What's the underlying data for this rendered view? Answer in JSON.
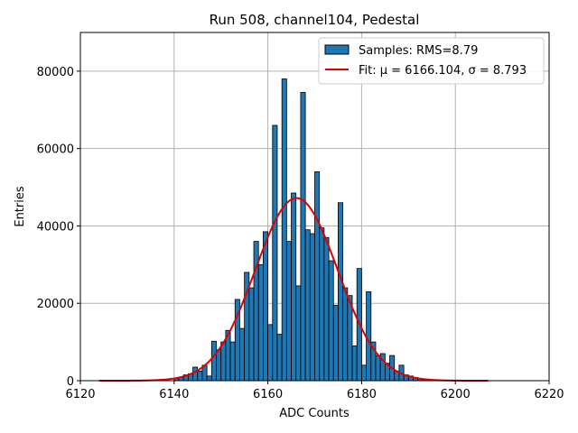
{
  "chart_data": {
    "type": "bar",
    "title": "Run 508, channel104, Pedestal",
    "xlabel": "ADC Counts",
    "ylabel": "Entries",
    "xlim": [
      6120,
      6220
    ],
    "ylim": [
      0,
      90000
    ],
    "xticks": [
      6120,
      6140,
      6160,
      6180,
      6200,
      6220
    ],
    "yticks": [
      0,
      20000,
      40000,
      60000,
      80000
    ],
    "grid": true,
    "legend_position": "top-right",
    "bin_width": 1,
    "histogram": {
      "name": "Samples: RMS=8.79",
      "color": "#1f77b4",
      "bins": [
        6140,
        6141,
        6142,
        6143,
        6144,
        6145,
        6146,
        6147,
        6148,
        6149,
        6150,
        6151,
        6152,
        6153,
        6154,
        6155,
        6156,
        6157,
        6158,
        6159,
        6160,
        6161,
        6162,
        6163,
        6164,
        6165,
        6166,
        6167,
        6168,
        6169,
        6170,
        6171,
        6172,
        6173,
        6174,
        6175,
        6176,
        6177,
        6178,
        6179,
        6180,
        6181,
        6182,
        6183,
        6184,
        6185,
        6186,
        6187,
        6188,
        6189,
        6190,
        6191,
        6192,
        6193
      ],
      "values": [
        600,
        900,
        1500,
        1800,
        3500,
        2500,
        4000,
        1200,
        10200,
        8000,
        10000,
        13000,
        10000,
        21000,
        13500,
        28000,
        24000,
        36000,
        30000,
        38500,
        14500,
        66000,
        12000,
        78000,
        36000,
        48500,
        24500,
        74500,
        39000,
        38000,
        54000,
        39500,
        37000,
        31000,
        19500,
        46000,
        24000,
        22000,
        9000,
        29000,
        4000,
        23000,
        10000,
        6500,
        7000,
        4500,
        6500,
        2500,
        4000,
        1500,
        1200,
        800,
        500,
        300
      ]
    },
    "fit": {
      "name": "Fit: μ = 6166.104, σ = 8.793",
      "color": "#e00000",
      "mu": 6166.104,
      "sigma": 8.793,
      "amplitude": 47200,
      "xrange": [
        6124,
        6207
      ]
    }
  }
}
